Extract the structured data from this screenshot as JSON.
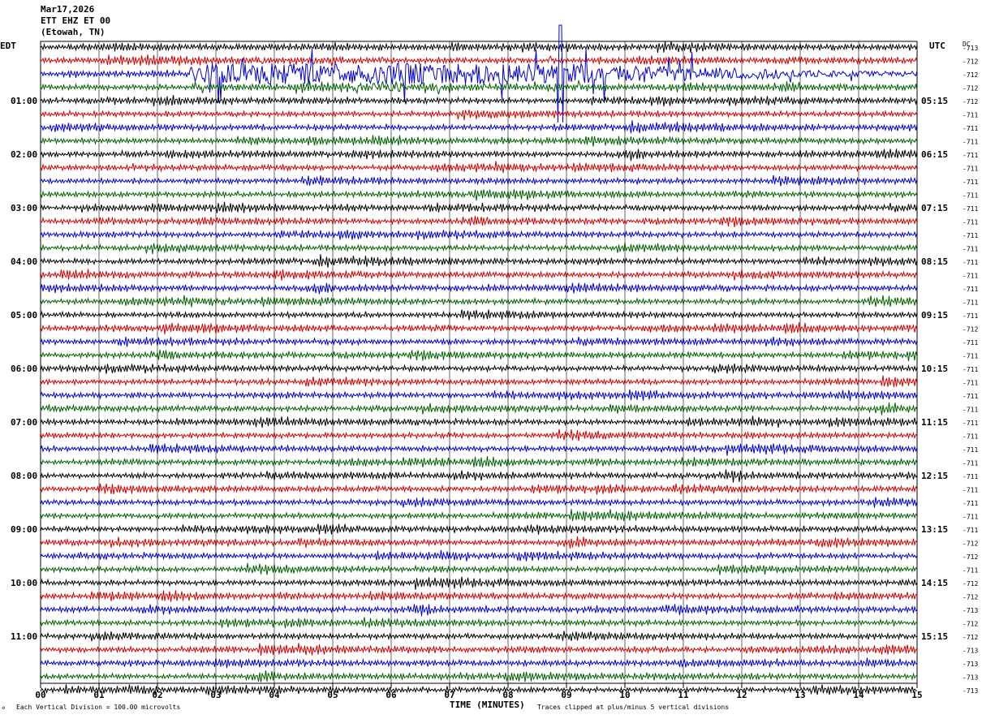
{
  "header": {
    "date": "Mar17,2026",
    "station": "ETT EHZ ET 00",
    "location": "(Etowah, TN)"
  },
  "left_zone_label": "EDT",
  "right_zone_label": "UTC",
  "dc_label": "DC",
  "footer": {
    "scale_note": "Each Vertical Division = 100.00 microvolts",
    "axis_title": "TIME (MINUTES)",
    "clip_note": "Traces clipped at plus/minus 5 vertical divisions"
  },
  "colors": {
    "black": "#000000",
    "red": "#d00000",
    "blue": "#0000d0",
    "green": "#006000"
  },
  "chart_data": {
    "type": "line",
    "title": "",
    "xlabel": "TIME (MINUTES)",
    "ylabel": "",
    "xlim": [
      0,
      15
    ],
    "x_ticks": [
      "00",
      "01",
      "02",
      "03",
      "04",
      "05",
      "06",
      "07",
      "08",
      "09",
      "10",
      "11",
      "12",
      "13",
      "14",
      "15"
    ],
    "grid": "vertical lines every minute",
    "trace_colors_cycle": [
      "black",
      "red",
      "blue",
      "green"
    ],
    "left_hour_labels": [
      "01:00",
      "02:00",
      "03:00",
      "04:00",
      "05:00",
      "06:00",
      "07:00",
      "08:00",
      "09:00",
      "10:00",
      "11:00"
    ],
    "right_hour_labels": [
      "05:15",
      "06:15",
      "07:15",
      "08:15",
      "09:15",
      "10:15",
      "11:15",
      "12:15",
      "13:15",
      "14:15",
      "15:15"
    ],
    "hour_label_start_trace": 4,
    "dc_offsets": [
      "-713",
      "-712",
      "-712",
      "-712",
      "-712",
      "-711",
      "-711",
      "-711",
      "-711",
      "-711",
      "-711",
      "-711",
      "-711",
      "-711",
      "-711",
      "-711",
      "-711",
      "-711",
      "-711",
      "-711",
      "-711",
      "-712",
      "-711",
      "-711",
      "-711",
      "-711",
      "-711",
      "-711",
      "-711",
      "-711",
      "-711",
      "-711",
      "-711",
      "-711",
      "-711",
      "-711",
      "-711",
      "-712",
      "-712",
      "-711",
      "-712",
      "-712",
      "-713",
      "-712",
      "-712",
      "-713",
      "-713",
      "-713",
      "-713"
    ],
    "event": {
      "trace": 2,
      "start_min": 2.55,
      "peak_min": 8.9,
      "end_min": 15.0,
      "description_visible": false
    }
  }
}
